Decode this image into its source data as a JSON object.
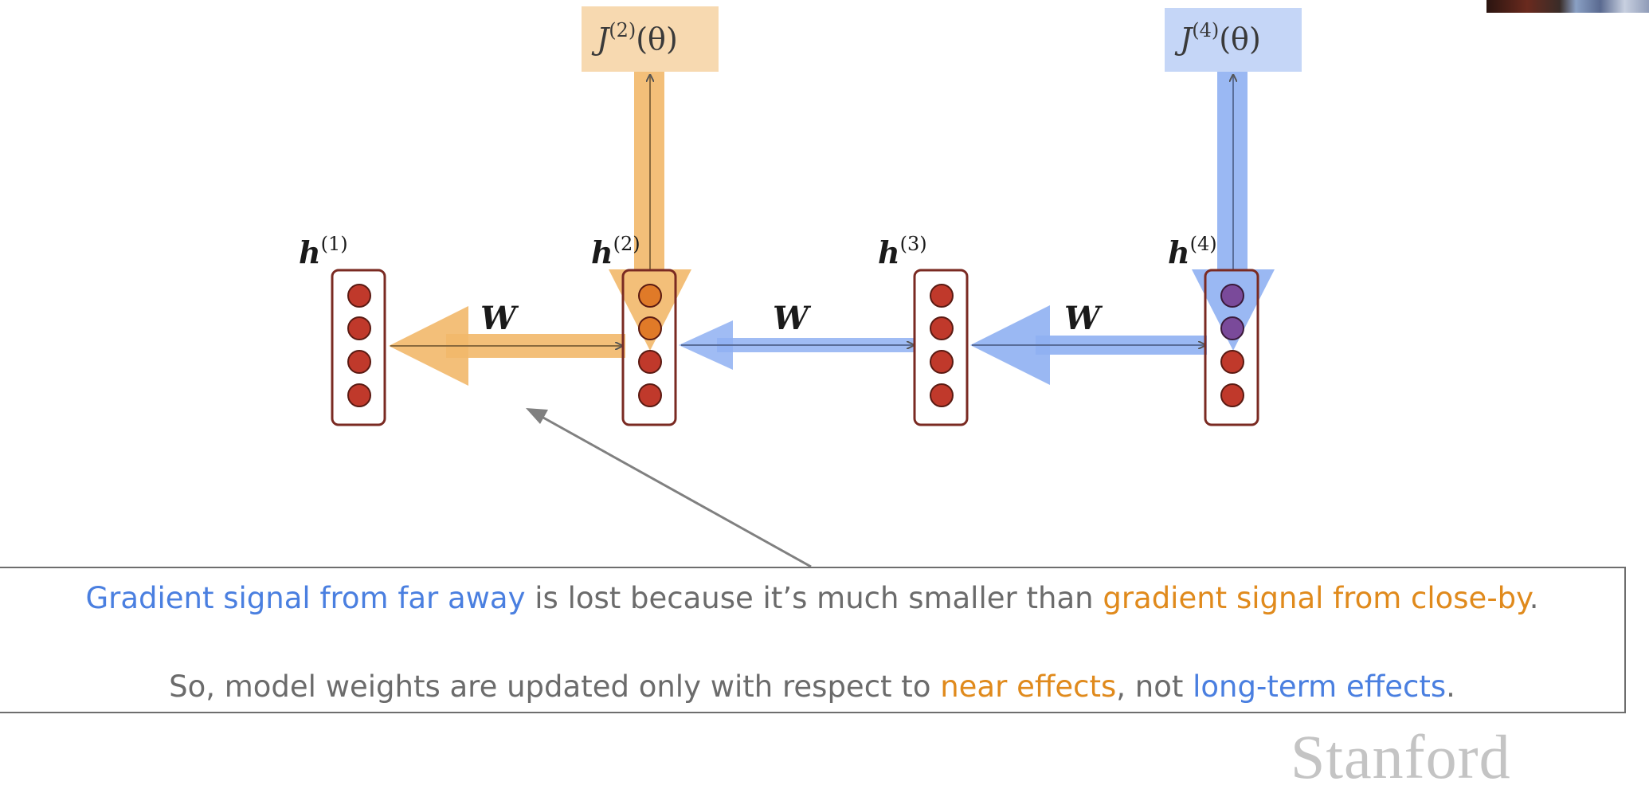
{
  "diagram": {
    "nodes": [
      {
        "label_base": "h",
        "label_sup": "(1)"
      },
      {
        "label_base": "h",
        "label_sup": "(2)"
      },
      {
        "label_base": "h",
        "label_sup": "(3)"
      },
      {
        "label_base": "h",
        "label_sup": "(4)"
      }
    ],
    "weights": [
      "W",
      "W",
      "W"
    ],
    "losses": [
      {
        "base": "J",
        "sup": "(2)",
        "arg": "(θ)"
      },
      {
        "base": "J",
        "sup": "(4)",
        "arg": "(θ)"
      }
    ]
  },
  "caption": {
    "line1": {
      "part1": "Gradient signal from far away",
      "part2": " is lost because it’s much smaller than ",
      "part3": "gradient signal from close-by",
      "part4": "."
    },
    "line2": {
      "part1": "So, model weights are updated only with respect to ",
      "part2": "near effects",
      "part3": ", not ",
      "part4": "long-term effects",
      "part5": "."
    }
  },
  "branding": {
    "logo_text": "Stanford"
  },
  "colors": {
    "orange_signal": "#f2b86a",
    "blue_signal": "#8fb0f2",
    "node_dot": "#c0392b",
    "node_border": "#7a2a22"
  }
}
